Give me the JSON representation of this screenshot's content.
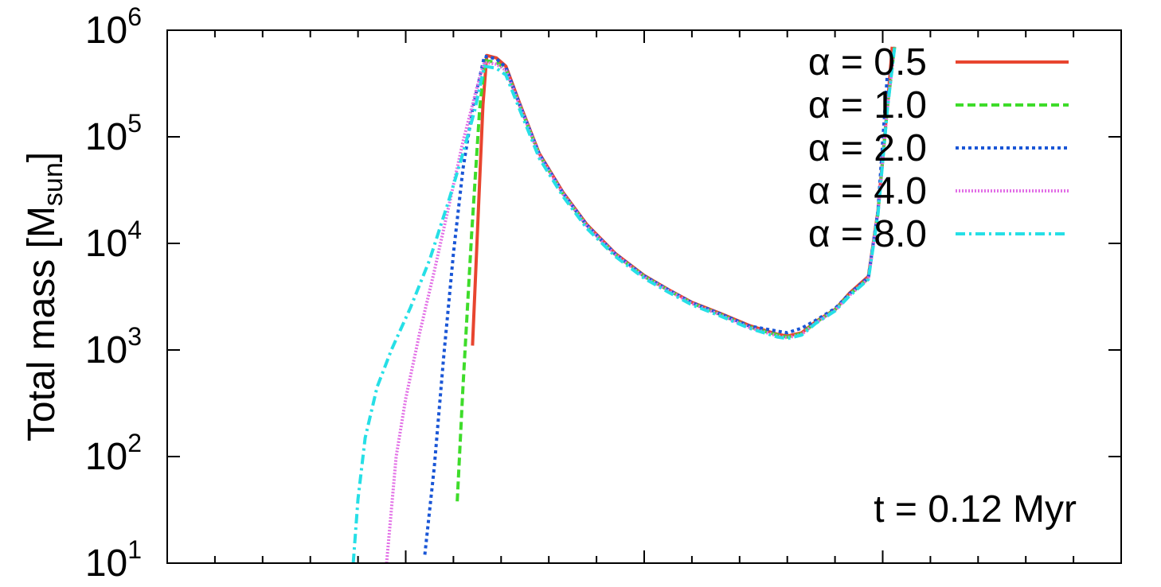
{
  "chart_data": {
    "type": "line",
    "ylabel": "Total mass [M",
    "ylabel_sub": "sun",
    "ylabel_close": "]",
    "xlabel": "",
    "ylim": [
      10,
      1000000
    ],
    "y_scale": "log",
    "y_tick_labels": [
      {
        "base": "10",
        "exp": "1",
        "value": 10
      },
      {
        "base": "10",
        "exp": "2",
        "value": 100
      },
      {
        "base": "10",
        "exp": "3",
        "value": 1000
      },
      {
        "base": "10",
        "exp": "4",
        "value": 10000
      },
      {
        "base": "10",
        "exp": "5",
        "value": 100000
      },
      {
        "base": "10",
        "exp": "6",
        "value": 1000000
      }
    ],
    "x_tick_labels": [],
    "xlim": [
      0,
      20
    ],
    "x_major_ticks": [
      5,
      10,
      15
    ],
    "x_minor_ticks": [
      1,
      2,
      3,
      4,
      6,
      7,
      8,
      9,
      11,
      12,
      13,
      14,
      16,
      17,
      18,
      19
    ],
    "grid": false,
    "legend_position": "top-right",
    "annotation": "t = 0.12 Myr",
    "series": [
      {
        "name": "α = 0.5",
        "color": "#e8452f",
        "dash": "solid",
        "x": [
          6.4,
          6.62,
          6.7,
          6.9,
          7.1,
          7.4,
          7.8,
          8.3,
          8.8,
          9.4,
          10.0,
          10.5,
          11.0,
          11.6,
          12.2,
          12.8,
          13.0,
          13.3,
          13.6,
          14.0,
          14.3,
          14.7,
          14.9,
          15.1,
          15.2
        ],
        "y": [
          1100,
          200000,
          580000,
          550000,
          460000,
          200000,
          70000,
          30000,
          15000,
          8000,
          5000,
          3700,
          2800,
          2200,
          1700,
          1400,
          1350,
          1450,
          1850,
          2400,
          3400,
          4900,
          20000,
          200000,
          700000
        ]
      },
      {
        "name": "α = 1.0",
        "color": "#3edc2a",
        "dash": "dashed",
        "x": [
          6.08,
          6.2,
          6.38,
          6.55,
          6.66,
          6.9,
          7.1,
          7.4,
          7.8,
          8.3,
          8.8,
          9.4,
          10.0,
          10.5,
          11.0,
          11.6,
          12.2,
          12.8,
          13.0,
          13.3,
          13.6,
          14.0,
          14.3,
          14.7,
          14.9,
          15.1,
          15.25
        ],
        "y": [
          38,
          450,
          12000,
          180000,
          520000,
          500000,
          430000,
          190000,
          68000,
          29000,
          14500,
          7800,
          4900,
          3650,
          2750,
          2150,
          1650,
          1380,
          1320,
          1420,
          1820,
          2380,
          3300,
          4700,
          19000,
          190000,
          700000
        ]
      },
      {
        "name": "α = 2.0",
        "color": "#1a56d6",
        "dash": "dotted",
        "x": [
          5.4,
          5.6,
          5.8,
          6.0,
          6.2,
          6.4,
          6.65,
          6.9,
          7.1,
          7.4,
          7.8,
          8.3,
          8.8,
          9.4,
          10.0,
          10.5,
          11.0,
          11.6,
          12.2,
          12.8,
          13.0,
          13.3,
          13.6,
          14.0,
          14.3,
          14.7,
          14.9,
          15.1
        ],
        "y": [
          12,
          80,
          900,
          8000,
          50000,
          180000,
          570000,
          540000,
          450000,
          195000,
          69000,
          29500,
          14800,
          7900,
          4950,
          3680,
          2780,
          2180,
          1680,
          1500,
          1450,
          1600,
          1900,
          2450,
          3350,
          4800,
          20000,
          400000
        ]
      },
      {
        "name": "α = 4.0",
        "color": "#e26fe6",
        "dash": "fine",
        "x": [
          4.6,
          4.8,
          5.0,
          5.3,
          5.6,
          5.9,
          6.2,
          6.5,
          6.65,
          6.9,
          7.1,
          7.4,
          7.8,
          8.3,
          8.8,
          9.4,
          10.0,
          10.5,
          11.0,
          11.6,
          12.2,
          12.8,
          13.0,
          13.3,
          13.6,
          14.0,
          14.3,
          14.7,
          14.9,
          15.1,
          15.25
        ],
        "y": [
          10,
          100,
          350,
          1500,
          5500,
          22000,
          90000,
          300000,
          500000,
          480000,
          420000,
          190000,
          67000,
          29000,
          14500,
          7800,
          4850,
          3620,
          2730,
          2130,
          1630,
          1350,
          1300,
          1400,
          1800,
          2350,
          3250,
          4650,
          19000,
          190000,
          700000
        ]
      },
      {
        "name": "α = 8.0",
        "color": "#26dfe6",
        "dash": "dashdot",
        "x": [
          3.9,
          4.0,
          4.15,
          4.4,
          4.7,
          5.1,
          5.5,
          5.9,
          6.2,
          6.45,
          6.65,
          6.9,
          7.1,
          7.4,
          7.8,
          8.3,
          8.8,
          9.4,
          10.0,
          10.5,
          11.0,
          11.6,
          12.2,
          12.8,
          13.0,
          13.3,
          13.6,
          14.0,
          14.3,
          14.7,
          14.9,
          15.1,
          15.25
        ],
        "y": [
          10,
          40,
          150,
          450,
          1000,
          2500,
          7000,
          25000,
          70000,
          180000,
          460000,
          440000,
          380000,
          175000,
          63000,
          27500,
          13800,
          7500,
          4700,
          3500,
          2650,
          2080,
          1600,
          1320,
          1280,
          1380,
          1780,
          2320,
          3200,
          4600,
          18500,
          185000,
          700000
        ]
      }
    ]
  }
}
